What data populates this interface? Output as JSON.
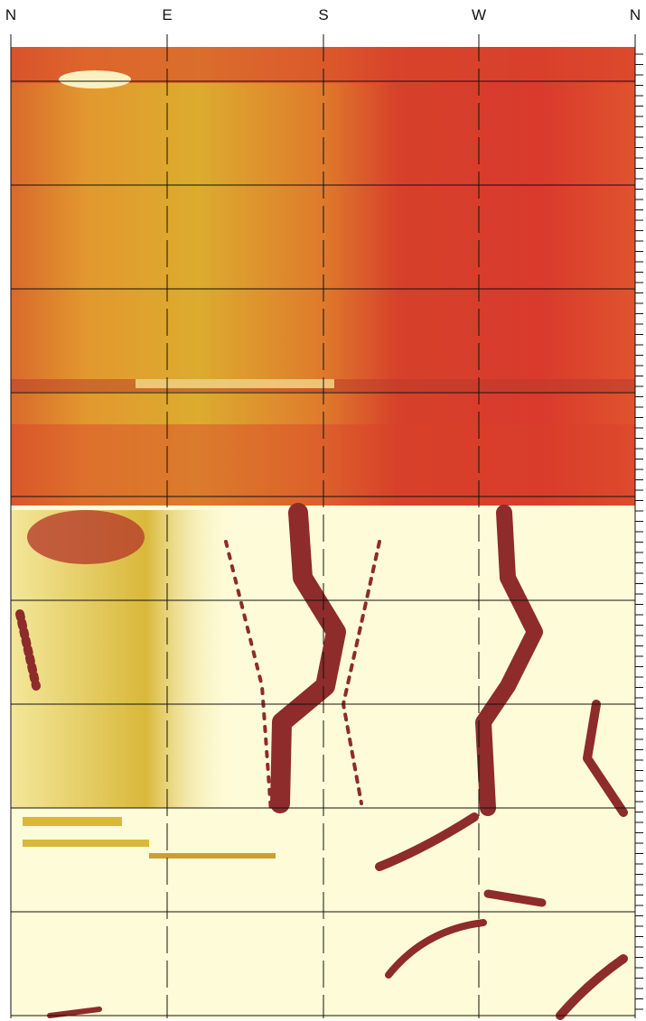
{
  "axis": {
    "labels": [
      "N",
      "E",
      "S",
      "W",
      "N"
    ]
  }
}
